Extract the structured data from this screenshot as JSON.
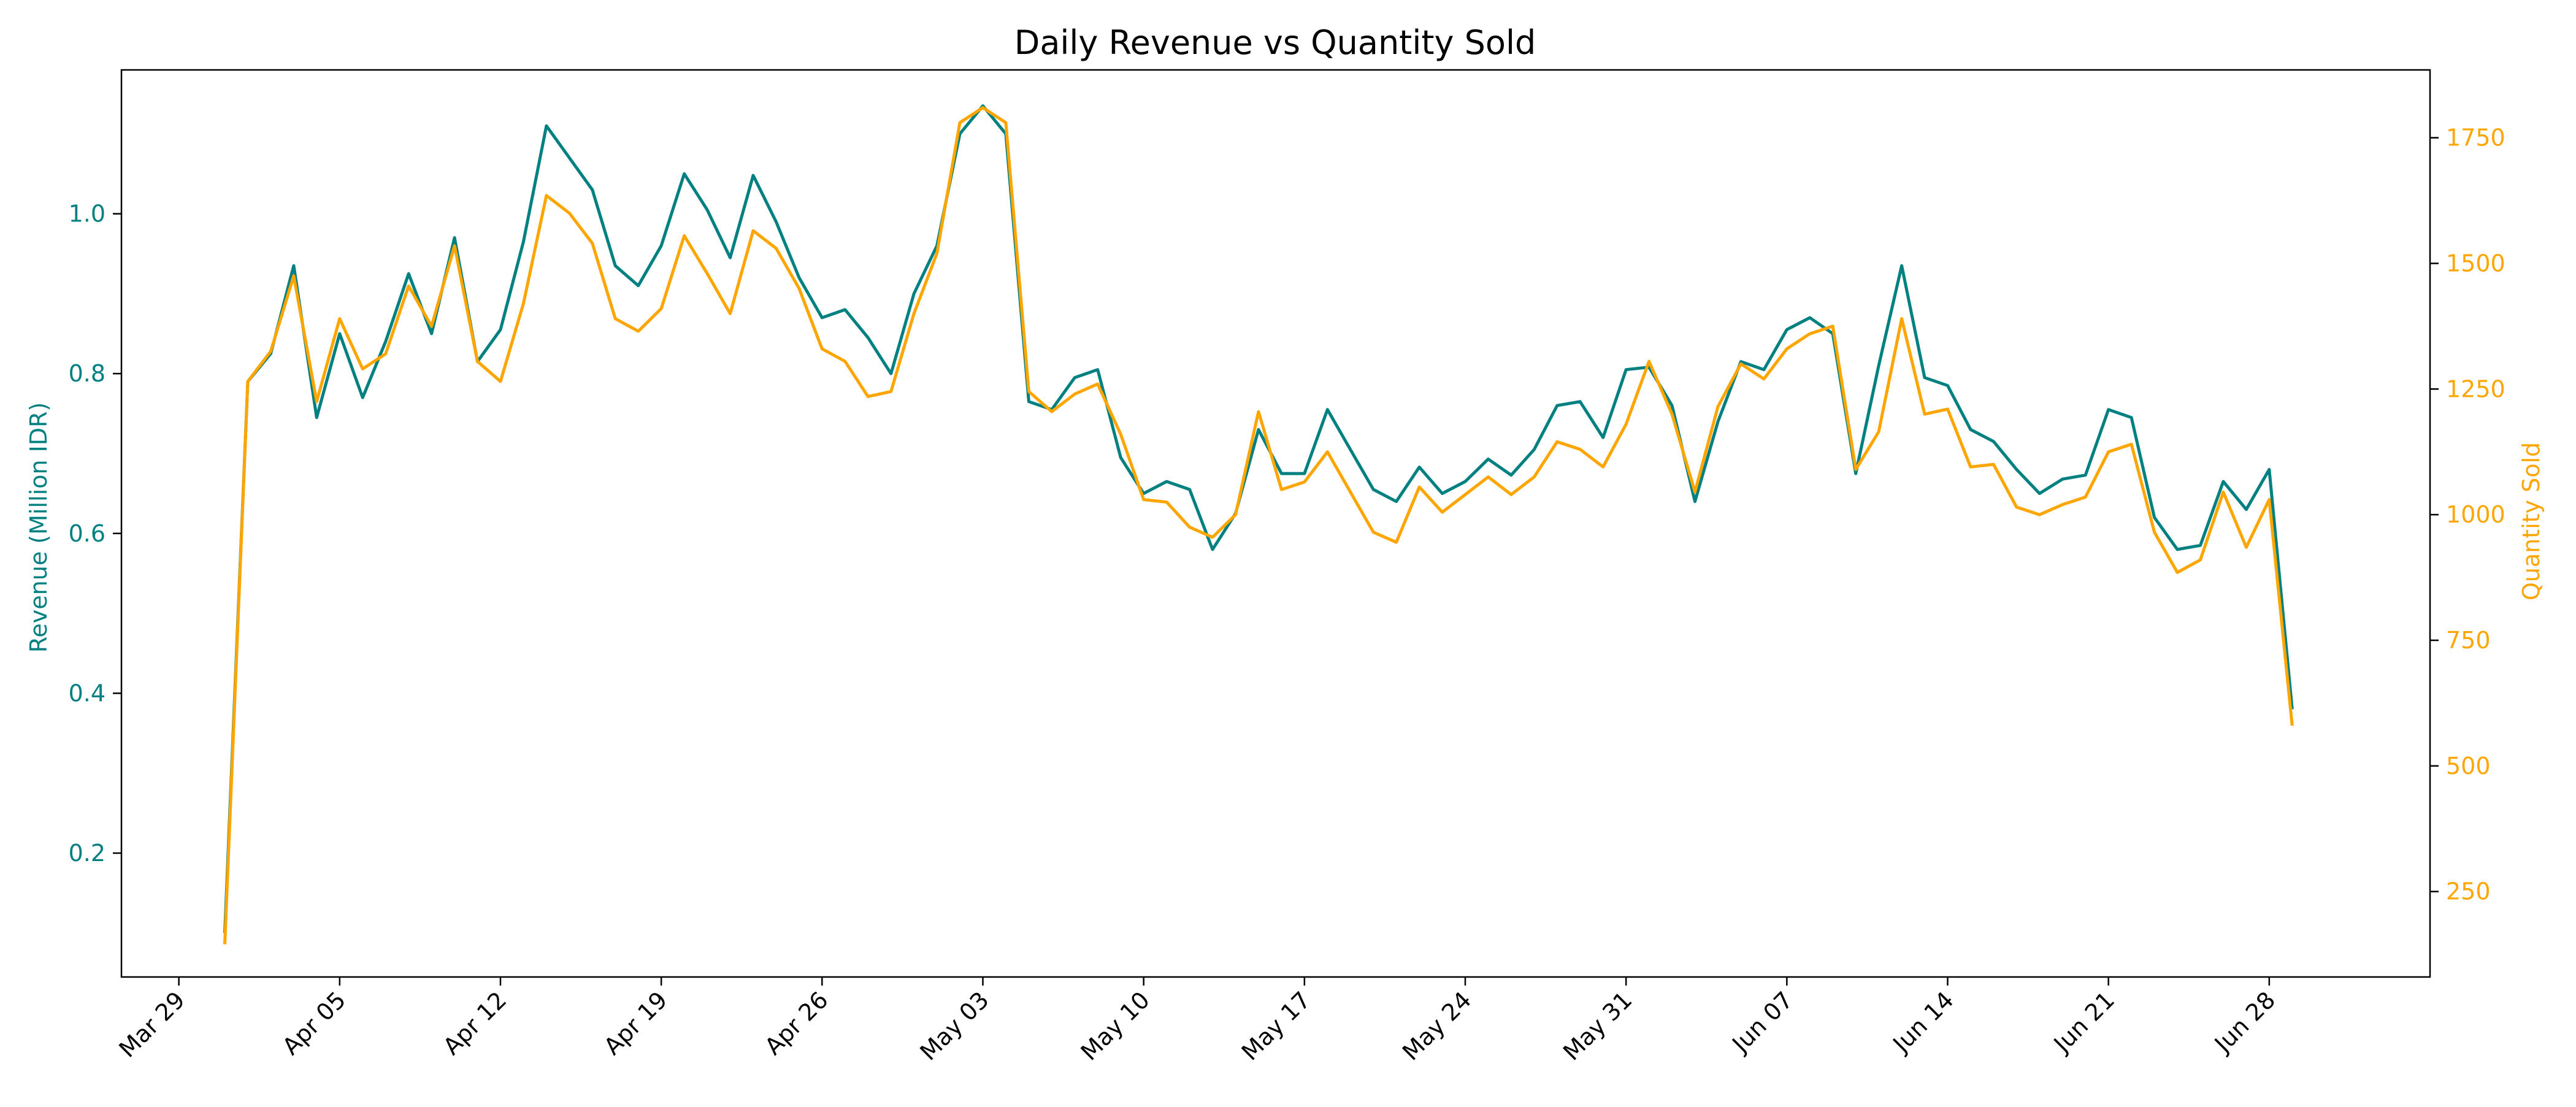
{
  "chart_data": {
    "type": "line",
    "title": "Daily Revenue vs Quantity Sold",
    "xlabel": "",
    "x_tick_labels": [
      "Mar 29",
      "Apr 05",
      "Apr 12",
      "Apr 19",
      "Apr 26",
      "May 03",
      "May 10",
      "May 17",
      "May 24",
      "May 31",
      "Jun 07",
      "Jun 14",
      "Jun 21",
      "Jun 28"
    ],
    "x_ticks": [
      "2023-03-29",
      "2023-04-05",
      "2023-04-12",
      "2023-04-19",
      "2023-04-26",
      "2023-05-03",
      "2023-05-10",
      "2023-05-17",
      "2023-05-24",
      "2023-05-31",
      "2023-06-07",
      "2023-06-14",
      "2023-06-21",
      "2023-06-28"
    ],
    "xlim": [
      "2023-03-26.5",
      "2023-07-05"
    ],
    "y_left": {
      "label": "Revenue (Million IDR)",
      "ylim": [
        0.045,
        1.18
      ],
      "ticks": [
        0.2,
        0.4,
        0.6,
        0.8,
        1.0
      ],
      "tick_labels": [
        "0.2",
        "0.4",
        "0.6",
        "0.8",
        "1.0"
      ],
      "color": "#008080"
    },
    "y_right": {
      "label": "Quantity Sold",
      "ylim": [
        80,
        1885
      ],
      "ticks": [
        250,
        500,
        750,
        1000,
        1250,
        1500,
        1750
      ],
      "tick_labels": [
        "250",
        "500",
        "750",
        "1000",
        "1250",
        "1500",
        "1750"
      ],
      "color": "#FFA500"
    },
    "grid": false,
    "legend": "none",
    "x": [
      "2023-03-31",
      "2023-04-01",
      "2023-04-02",
      "2023-04-03",
      "2023-04-04",
      "2023-04-05",
      "2023-04-06",
      "2023-04-07",
      "2023-04-08",
      "2023-04-09",
      "2023-04-10",
      "2023-04-11",
      "2023-04-12",
      "2023-04-13",
      "2023-04-14",
      "2023-04-15",
      "2023-04-16",
      "2023-04-17",
      "2023-04-18",
      "2023-04-19",
      "2023-04-20",
      "2023-04-21",
      "2023-04-22",
      "2023-04-23",
      "2023-04-24",
      "2023-04-25",
      "2023-04-26",
      "2023-04-27",
      "2023-04-28",
      "2023-04-29",
      "2023-04-30",
      "2023-05-01",
      "2023-05-02",
      "2023-05-03",
      "2023-05-04",
      "2023-05-05",
      "2023-05-06",
      "2023-05-07",
      "2023-05-08",
      "2023-05-09",
      "2023-05-10",
      "2023-05-11",
      "2023-05-12",
      "2023-05-13",
      "2023-05-14",
      "2023-05-15",
      "2023-05-16",
      "2023-05-17",
      "2023-05-18",
      "2023-05-19",
      "2023-05-20",
      "2023-05-21",
      "2023-05-22",
      "2023-05-23",
      "2023-05-24",
      "2023-05-25",
      "2023-05-26",
      "2023-05-27",
      "2023-05-28",
      "2023-05-29",
      "2023-05-30",
      "2023-05-31",
      "2023-06-01",
      "2023-06-02",
      "2023-06-03",
      "2023-06-04",
      "2023-06-05",
      "2023-06-06",
      "2023-06-07",
      "2023-06-08",
      "2023-06-09",
      "2023-06-10",
      "2023-06-11",
      "2023-06-12",
      "2023-06-13",
      "2023-06-14",
      "2023-06-15",
      "2023-06-16",
      "2023-06-17",
      "2023-06-18",
      "2023-06-19",
      "2023-06-20",
      "2023-06-21",
      "2023-06-22",
      "2023-06-23",
      "2023-06-24",
      "2023-06-25",
      "2023-06-26",
      "2023-06-27",
      "2023-06-28",
      "2023-06-29"
    ],
    "series": [
      {
        "axis": "left",
        "color": "#008080",
        "values": [
          0.1,
          0.79,
          0.825,
          0.935,
          0.745,
          0.85,
          0.77,
          0.84,
          0.925,
          0.85,
          0.97,
          0.815,
          0.855,
          0.965,
          1.11,
          1.07,
          1.03,
          0.935,
          0.91,
          0.96,
          1.05,
          1.005,
          0.945,
          1.048,
          0.99,
          0.92,
          0.87,
          0.88,
          0.845,
          0.8,
          0.9,
          0.96,
          1.1,
          1.135,
          1.1,
          0.765,
          0.755,
          0.795,
          0.805,
          0.695,
          0.65,
          0.665,
          0.655,
          0.58,
          0.625,
          0.73,
          0.675,
          0.675,
          0.755,
          0.705,
          0.655,
          0.64,
          0.683,
          0.65,
          0.665,
          0.693,
          0.673,
          0.705,
          0.76,
          0.765,
          0.72,
          0.805,
          0.808,
          0.76,
          0.64,
          0.74,
          0.815,
          0.805,
          0.855,
          0.87,
          0.85,
          0.675,
          0.81,
          0.935,
          0.795,
          0.785,
          0.73,
          0.715,
          0.68,
          0.65,
          0.668,
          0.673,
          0.755,
          0.745,
          0.62,
          0.58,
          0.585,
          0.665,
          0.63,
          0.68,
          0.38
        ]
      },
      {
        "axis": "right",
        "color": "#FFA500",
        "values": [
          145,
          1265,
          1325,
          1475,
          1225,
          1390,
          1290,
          1320,
          1455,
          1375,
          1535,
          1305,
          1265,
          1420,
          1635,
          1600,
          1540,
          1390,
          1365,
          1410,
          1555,
          1480,
          1400,
          1565,
          1530,
          1450,
          1330,
          1305,
          1235,
          1245,
          1400,
          1520,
          1780,
          1810,
          1780,
          1245,
          1205,
          1240,
          1260,
          1160,
          1030,
          1025,
          975,
          955,
          1000,
          1205,
          1050,
          1065,
          1125,
          1045,
          965,
          945,
          1055,
          1005,
          1040,
          1075,
          1040,
          1075,
          1145,
          1130,
          1095,
          1180,
          1305,
          1200,
          1045,
          1215,
          1300,
          1270,
          1330,
          1360,
          1375,
          1090,
          1165,
          1390,
          1200,
          1210,
          1095,
          1100,
          1015,
          1000,
          1020,
          1035,
          1125,
          1140,
          965,
          885,
          910,
          1045,
          935,
          1030,
          580
        ]
      }
    ]
  }
}
